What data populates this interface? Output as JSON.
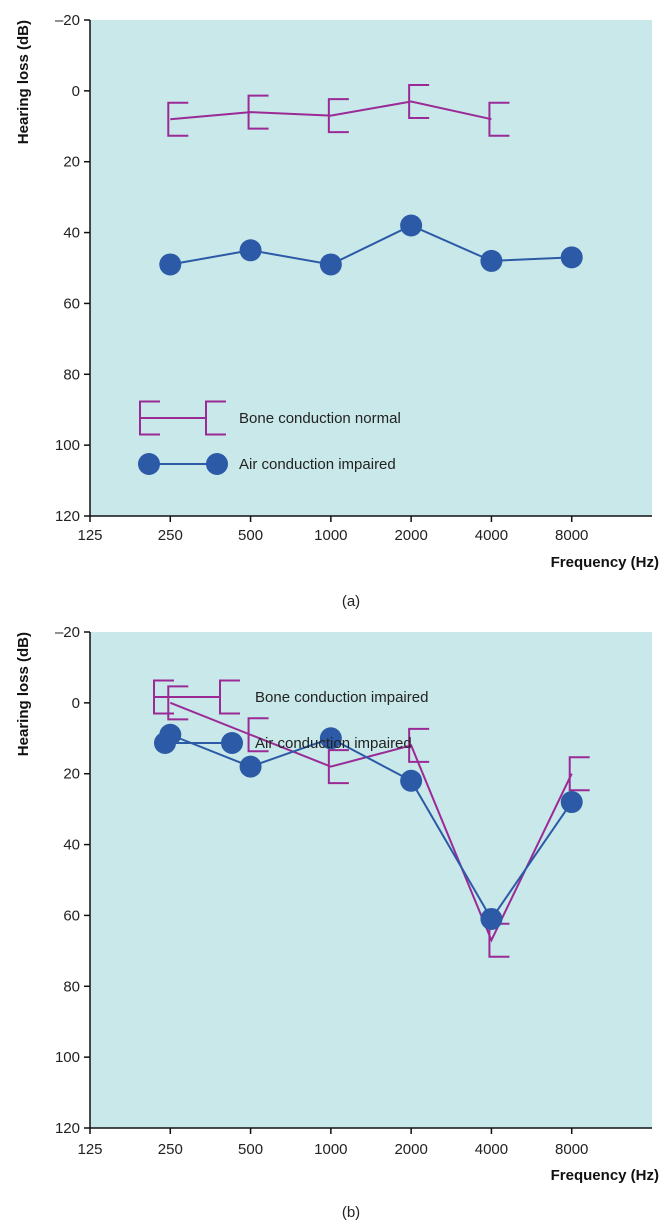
{
  "colors": {
    "background": "#c8e8ea",
    "bone": "#9b2a96",
    "air": "#2c5aa6",
    "axis": "#111111"
  },
  "chart_data": [
    {
      "type": "line",
      "caption": "(a)",
      "xlabel": "Frequency (Hz)",
      "ylabel": "Hearing loss (dB)",
      "categories": [
        "125",
        "250",
        "500",
        "1000",
        "2000",
        "4000",
        "8000"
      ],
      "ylim": [
        -20,
        120
      ],
      "y_inverted": true,
      "y_ticks": [
        -20,
        0,
        20,
        40,
        60,
        80,
        100,
        120
      ],
      "y_tick_labels": [
        "–20",
        "0",
        "20",
        "40",
        "60",
        "80",
        "100",
        "120"
      ],
      "grid": false,
      "legend_position": "bottom-left",
      "series": [
        {
          "name": "Bone conduction normal",
          "marker": "bracket",
          "color": "#9b2a96",
          "points": [
            [
              250,
              8
            ],
            [
              500,
              6
            ],
            [
              1000,
              7
            ],
            [
              2000,
              3
            ],
            [
              4000,
              8
            ]
          ]
        },
        {
          "name": "Air conduction impaired",
          "marker": "circle",
          "color": "#2c5aa6",
          "points": [
            [
              250,
              49
            ],
            [
              500,
              45
            ],
            [
              1000,
              49
            ],
            [
              2000,
              38
            ],
            [
              4000,
              48
            ],
            [
              8000,
              47
            ]
          ]
        }
      ]
    },
    {
      "type": "line",
      "caption": "(b)",
      "xlabel": "Frequency (Hz)",
      "ylabel": "Hearing loss (dB)",
      "categories": [
        "125",
        "250",
        "500",
        "1000",
        "2000",
        "4000",
        "8000"
      ],
      "ylim": [
        -20,
        120
      ],
      "y_inverted": true,
      "y_ticks": [
        -20,
        0,
        20,
        40,
        60,
        80,
        100,
        120
      ],
      "y_tick_labels": [
        "–20",
        "0",
        "20",
        "40",
        "60",
        "80",
        "100",
        "120"
      ],
      "grid": false,
      "legend_position": "bottom-left",
      "series": [
        {
          "name": "Bone conduction impaired",
          "marker": "bracket",
          "color": "#9b2a96",
          "points": [
            [
              250,
              0
            ],
            [
              500,
              9
            ],
            [
              1000,
              18
            ],
            [
              2000,
              12
            ],
            [
              4000,
              67
            ],
            [
              8000,
              20
            ]
          ]
        },
        {
          "name": "Air conduction impaired",
          "marker": "circle",
          "color": "#2c5aa6",
          "points": [
            [
              250,
              9
            ],
            [
              500,
              18
            ],
            [
              1000,
              10
            ],
            [
              2000,
              22
            ],
            [
              4000,
              61
            ],
            [
              8000,
              28
            ]
          ]
        }
      ]
    }
  ]
}
